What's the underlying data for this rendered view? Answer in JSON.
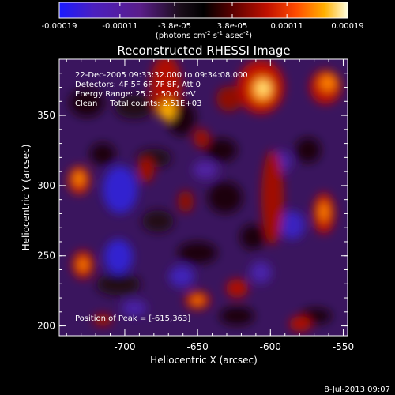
{
  "colorbar": {
    "tick_labels": [
      "-0.00019",
      "-0.00011",
      "-3.8e-05",
      "3.8e-05",
      "0.00011",
      "0.00019"
    ],
    "tick_values": [
      -0.00019,
      -0.00011,
      -3.8e-05,
      3.8e-05,
      0.00011,
      0.00019
    ],
    "range": [
      -0.00019,
      0.00019
    ],
    "units_prefix": "(photons cm",
    "units_exp1": "-2",
    "units_mid": " s",
    "units_exp2": "-1",
    "units_suffix": " asec",
    "units_exp3": "-2",
    "units_close": ")",
    "colormap": [
      "#1a1aff",
      "#4b1fc0",
      "#5a1e8a",
      "#1a0d1a",
      "#000000",
      "#5a0000",
      "#c01000",
      "#ff4a00",
      "#ffb000",
      "#ffffe0"
    ]
  },
  "title": "Reconstructed RHESSI Image",
  "info_lines": [
    "22-Dec-2005 09:33:32.000 to 09:34:08.000",
    "Detectors: 4F 5F 6F 7F 8F, Att 0",
    "Energy Range: 25.0 - 50.0 keV",
    "Clean     Total counts: 2.51E+03"
  ],
  "peak_label": "Position of Peak = [-615,363]",
  "x_axis": {
    "label": "Heliocentric X (arcsec)",
    "range": [
      -745,
      -547
    ],
    "tick_labels": [
      "-700",
      "-650",
      "-600",
      "-550"
    ],
    "ticks": [
      -700,
      -650,
      -600,
      -550
    ]
  },
  "y_axis": {
    "label": "Heliocentric Y (arcsec)",
    "range": [
      193,
      390
    ],
    "tick_labels": [
      "200",
      "250",
      "300",
      "350"
    ],
    "ticks": [
      200,
      250,
      300,
      350
    ]
  },
  "timestamp": "8-Jul-2013 09:07"
}
